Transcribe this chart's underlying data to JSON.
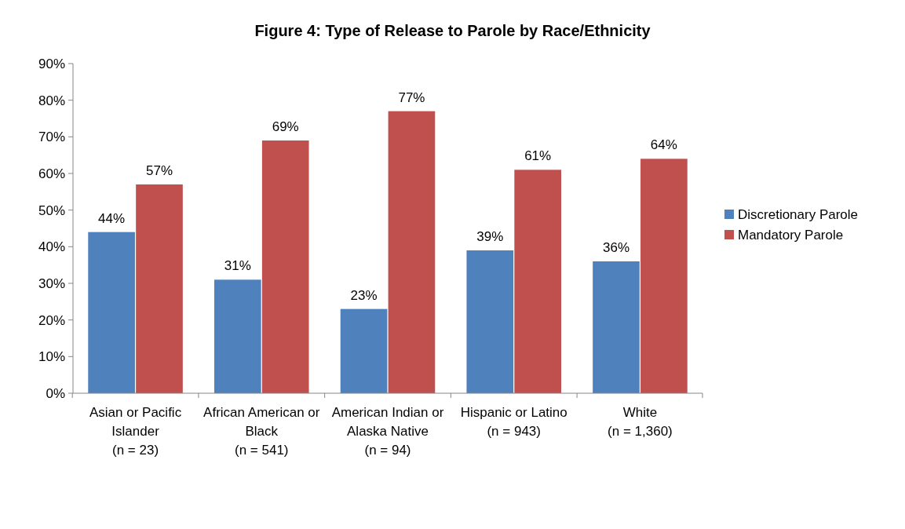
{
  "chart_data": {
    "type": "bar",
    "title": "Figure 4: Type of Release to Parole by Race/Ethnicity",
    "categories": [
      "Asian or Pacific Islander (n = 23)",
      "African American or Black (n = 541)",
      "American Indian or Alaska Native (n = 94)",
      "Hispanic or Latino (n = 943)",
      "White (n = 1,360)"
    ],
    "series": [
      {
        "name": "Discretionary Parole",
        "color": "#4f81bd",
        "values": [
          44,
          31,
          23,
          39,
          36
        ],
        "value_labels": [
          "44%",
          "31%",
          "23%",
          "39%",
          "36%"
        ]
      },
      {
        "name": "Mandatory Parole",
        "color": "#c0504d",
        "values": [
          57,
          69,
          77,
          61,
          64
        ],
        "value_labels": [
          "57%",
          "69%",
          "77%",
          "61%",
          "64%"
        ]
      }
    ],
    "ylim": [
      0,
      90
    ],
    "yticks": [
      {
        "value": 0,
        "label": "0%"
      },
      {
        "value": 10,
        "label": "10%"
      },
      {
        "value": 20,
        "label": "20%"
      },
      {
        "value": 30,
        "label": "30%"
      },
      {
        "value": 40,
        "label": "40%"
      },
      {
        "value": 50,
        "label": "50%"
      },
      {
        "value": 60,
        "label": "60%"
      },
      {
        "value": 70,
        "label": "70%"
      },
      {
        "value": 80,
        "label": "80%"
      },
      {
        "value": 90,
        "label": "90%"
      }
    ],
    "grid": false,
    "legend": "right"
  }
}
